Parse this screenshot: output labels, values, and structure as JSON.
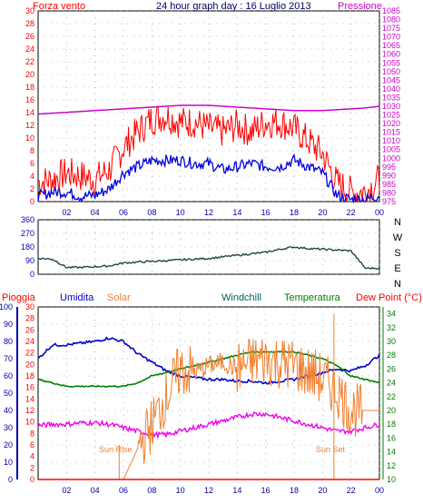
{
  "header": {
    "wind_label": "Forza vento",
    "title": "24 hour graph day : 16 Luglio 2013",
    "pressure_label": "Pressione"
  },
  "colors": {
    "gust": "#ff0000",
    "wind": "#0000dd",
    "pressure": "#cc00cc",
    "direction": "#143c3c",
    "humidity": "#0000cc",
    "solar": "#f08030",
    "temperature": "#008000",
    "dewpoint": "#ee00ee",
    "rain": "#ff0000",
    "axis_left_blue": "#0000aa",
    "axis_right_magenta": "#cc00cc",
    "grid": "#888888",
    "windchill": "#006060"
  },
  "legend": {
    "rain": "Pioggia",
    "humidity": "Umidita",
    "solar": "Solar",
    "windchill": "Windchill",
    "temperature": "Temperatura",
    "dewpoint": "Dew Point (°C)"
  },
  "annotations": {
    "sunrise": "Sun Rise",
    "sunset": "Sun Set"
  },
  "chart_data": [
    {
      "type": "line",
      "panel": "wind_pressure",
      "x_ticks": [
        "02",
        "04",
        "06",
        "08",
        "10",
        "12",
        "14",
        "16",
        "18",
        "20",
        "22",
        "00"
      ],
      "ylim_left": [
        0,
        30
      ],
      "yticks_left": [
        0,
        2,
        4,
        6,
        8,
        10,
        12,
        14,
        16,
        18,
        20,
        22,
        24,
        26,
        28,
        30
      ],
      "ylim_right": [
        975,
        1085
      ],
      "yticks_right": [
        975,
        980,
        985,
        990,
        995,
        1000,
        1005,
        1010,
        1015,
        1020,
        1025,
        1030,
        1035,
        1040,
        1045,
        1050,
        1055,
        1060,
        1065,
        1070,
        1075,
        1080,
        1085
      ],
      "x": [
        0,
        1,
        2,
        3,
        4,
        5,
        6,
        7,
        8,
        9,
        10,
        11,
        12,
        13,
        14,
        15,
        16,
        17,
        18,
        19,
        20,
        21,
        22,
        23,
        24
      ],
      "series": [
        {
          "name": "gust",
          "axis": "left",
          "values": [
            3.0,
            3.5,
            4.5,
            4.0,
            3.5,
            5.0,
            8.5,
            11.0,
            13.0,
            13.5,
            12.5,
            12.5,
            11.5,
            11.0,
            12.0,
            11.0,
            12.5,
            12.5,
            11.5,
            9.5,
            7.5,
            3.0,
            1.5,
            1.5,
            3.5
          ]
        },
        {
          "name": "wind",
          "axis": "left",
          "values": [
            0.8,
            1.5,
            1.5,
            0.8,
            1.0,
            2.0,
            4.5,
            5.5,
            6.5,
            6.5,
            6.5,
            6.0,
            6.0,
            5.0,
            5.5,
            6.0,
            5.5,
            5.5,
            6.5,
            5.5,
            4.5,
            1.0,
            0.3,
            0.3,
            1.0
          ]
        },
        {
          "name": "pressure",
          "axis": "right",
          "values": [
            1025.5,
            1026.0,
            1026.5,
            1027.0,
            1027.5,
            1028.0,
            1028.5,
            1029.0,
            1029.5,
            1030.0,
            1030.5,
            1030.5,
            1030.5,
            1030.0,
            1029.5,
            1029.0,
            1028.5,
            1028.0,
            1027.5,
            1027.5,
            1027.5,
            1028.0,
            1028.5,
            1029.0,
            1030.0
          ]
        }
      ]
    },
    {
      "type": "line",
      "panel": "wind_direction",
      "ylim": [
        0,
        360
      ],
      "yticks": [
        0,
        90,
        180,
        270,
        360
      ],
      "right_labels": [
        "N",
        "W",
        "S",
        "E",
        "N"
      ],
      "x": [
        0,
        1,
        2,
        3,
        4,
        5,
        6,
        7,
        8,
        9,
        10,
        11,
        12,
        13,
        14,
        15,
        16,
        17,
        18,
        19,
        20,
        21,
        22,
        23,
        24
      ],
      "series": [
        {
          "name": "direction",
          "values": [
            105,
            100,
            45,
            45,
            50,
            55,
            75,
            80,
            85,
            90,
            95,
            100,
            105,
            115,
            125,
            135,
            145,
            165,
            180,
            170,
            165,
            160,
            155,
            40,
            40
          ]
        }
      ]
    },
    {
      "type": "line",
      "panel": "weather",
      "x_ticks": [
        "02",
        "04",
        "06",
        "08",
        "10",
        "12",
        "14",
        "16",
        "18",
        "20",
        "22",
        "00"
      ],
      "yticks_humidity": [
        0,
        10,
        20,
        30,
        40,
        50,
        60,
        70,
        80,
        90,
        100
      ],
      "yticks_rain": [
        0,
        2,
        4,
        6,
        8,
        10,
        12,
        14,
        16,
        18,
        20,
        22,
        24,
        26,
        28,
        30
      ],
      "yticks_temp": [
        10,
        12,
        14,
        16,
        18,
        20,
        22,
        24,
        26,
        28,
        30,
        32,
        34
      ],
      "ylim_humidity": [
        0,
        100
      ],
      "ylim_temp": [
        10,
        35
      ],
      "x": [
        0,
        1,
        2,
        3,
        4,
        5,
        6,
        7,
        8,
        9,
        10,
        11,
        12,
        13,
        14,
        15,
        16,
        17,
        18,
        19,
        20,
        21,
        22,
        23,
        24
      ],
      "series": [
        {
          "name": "humidity",
          "axis": "humidity",
          "values": [
            70,
            78,
            78,
            79,
            80,
            82,
            80,
            73,
            68,
            63,
            60,
            59,
            58,
            58,
            57,
            57,
            56,
            57,
            58,
            60,
            62,
            64,
            63,
            66,
            72
          ]
        },
        {
          "name": "temperature",
          "axis": "temp",
          "values": [
            24.5,
            24.0,
            23.5,
            23.5,
            23.5,
            23.5,
            23.5,
            24.0,
            25.0,
            25.5,
            26.0,
            26.5,
            27.0,
            27.5,
            28.0,
            28.5,
            28.5,
            28.5,
            28.5,
            28.0,
            27.5,
            26.5,
            25.0,
            24.5,
            24.0
          ]
        },
        {
          "name": "dewpoint",
          "axis": "temp",
          "values": [
            17.8,
            18.0,
            18.0,
            18.2,
            18.2,
            18.0,
            17.5,
            17.0,
            16.5,
            16.5,
            17.0,
            17.5,
            18.0,
            18.5,
            19.0,
            19.5,
            19.5,
            19.0,
            18.5,
            18.0,
            17.5,
            17.0,
            17.0,
            17.5,
            18.0
          ]
        },
        {
          "name": "solar",
          "axis": "temp",
          "values": [
            10,
            10,
            10,
            10,
            10,
            10,
            10,
            14.5,
            18.0,
            22.0,
            26.0,
            25.5,
            26.5,
            27.0,
            26.0,
            27.0,
            27.5,
            27.0,
            26.5,
            25.5,
            24.5,
            23.0,
            20.0,
            20.0,
            20.0
          ]
        },
        {
          "name": "rain",
          "axis": "rain",
          "values": [
            0,
            0,
            0,
            0,
            0,
            0,
            0,
            0,
            0,
            0,
            0,
            0,
            0,
            0,
            0,
            0,
            0,
            0,
            0,
            0,
            0,
            0,
            0,
            0,
            0
          ]
        }
      ]
    }
  ]
}
